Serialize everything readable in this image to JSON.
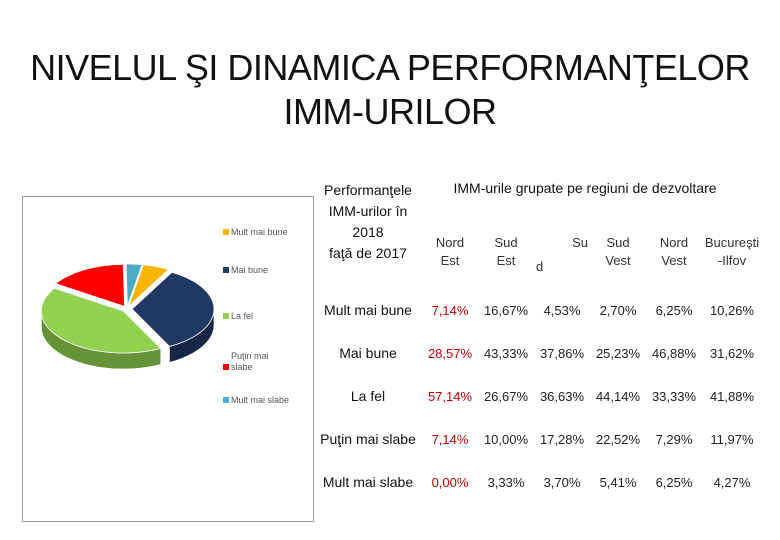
{
  "slide": {
    "title_line1": "NIVELUL ŞI DINAMICA PERFORMANŢELOR",
    "title_line2": "IMM-URILOR",
    "caption_lines": [
      "Performanţele",
      "IMM-urilor în",
      "2018",
      "faţă de 2017"
    ],
    "table_title": "IMM-urile grupate pe regiuni de dezvoltare"
  },
  "chart_data": {
    "type": "pie",
    "style": "3d-exploded",
    "legend_position": "right",
    "categories": [
      "Mult mai bune",
      "Mai bune",
      "La fel",
      "Puţin mai slabe",
      "Mult mai slabe"
    ],
    "legend_labels": [
      "Mult mai bune",
      "Mai bune",
      "La fel",
      "Puţin mai slabe",
      "Mult mai slabe"
    ],
    "values": [
      5,
      33,
      40,
      15,
      3
    ],
    "colors": [
      "#f7b500",
      "#1f3864",
      "#92d050",
      "#ff0000",
      "#4bacc6"
    ]
  },
  "table": {
    "columns": [
      [
        "Nord",
        "Est"
      ],
      [
        "Sud",
        "Est"
      ],
      [
        "Su",
        "d"
      ],
      [
        "Sud",
        "Vest"
      ],
      [
        "Nord",
        "Vest"
      ],
      [
        "Bucureşti",
        "-Ilfov"
      ]
    ],
    "rows": [
      {
        "label": "Mult mai bune",
        "values": [
          "7,14%",
          "16,67%",
          "4,53%",
          "2,70%",
          "6,25%",
          "10,26%"
        ]
      },
      {
        "label": "Mai bune",
        "values": [
          "28,57%",
          "43,33%",
          "37,86%",
          "25,23%",
          "46,88%",
          "31,62%"
        ]
      },
      {
        "label": "La fel",
        "values": [
          "57,14%",
          "26,67%",
          "36,63%",
          "44,14%",
          "33,33%",
          "41,88%"
        ]
      },
      {
        "label": "Puţin mai slabe",
        "values": [
          "7,14%",
          "10,00%",
          "17,28%",
          "22,52%",
          "7,29%",
          "11,97%"
        ]
      },
      {
        "label": "Mult mai slabe",
        "values": [
          "0,00%",
          "3,33%",
          "3,70%",
          "5,41%",
          "6,25%",
          "4,27%"
        ]
      }
    ]
  }
}
